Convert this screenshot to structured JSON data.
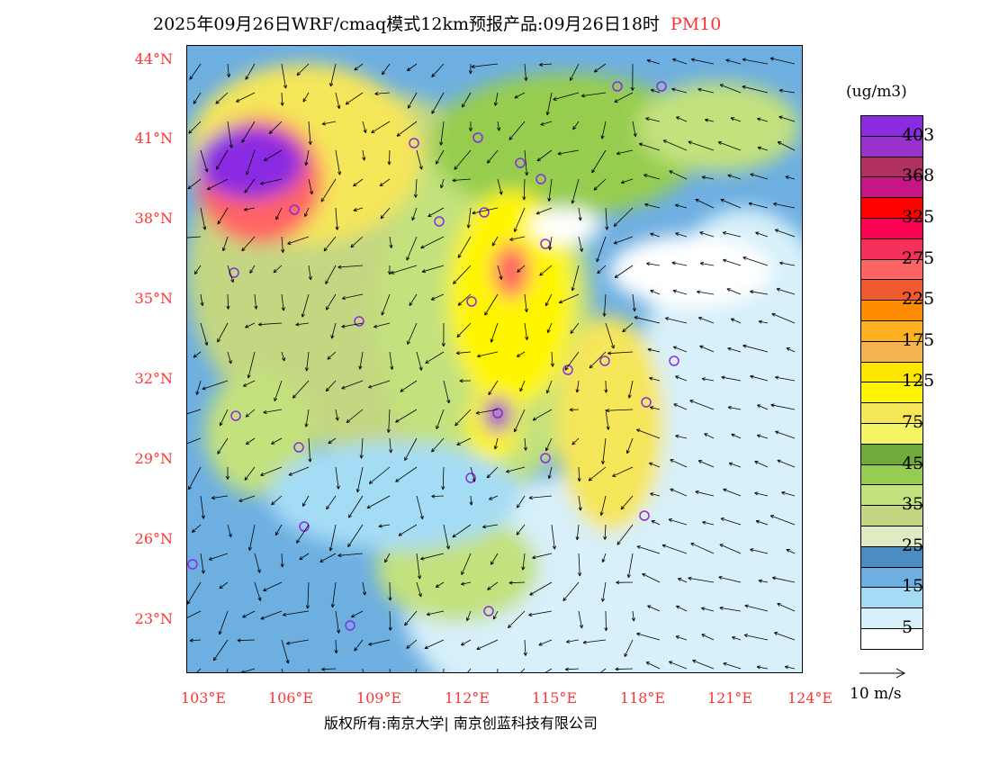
{
  "title": {
    "main": "2025年09月26日WRF/cmaq模式12km预报产品:09月26日18时",
    "pollutant": "PM10"
  },
  "lat_labels": [
    "44°N",
    "41°N",
    "38°N",
    "35°N",
    "32°N",
    "29°N",
    "26°N",
    "23°N"
  ],
  "lon_labels": [
    "103°E",
    "106°E",
    "109°E",
    "112°E",
    "115°E",
    "118°E",
    "121°E",
    "124°E"
  ],
  "colorbar": {
    "unit": "(ug/m3)",
    "colors": [
      "#8a2be2",
      "#9932cc",
      "#b03060",
      "#c71585",
      "#ff0000",
      "#ff0050",
      "#f5305a",
      "#ff6464",
      "#f05a2d",
      "#ff8c00",
      "#ffb020",
      "#f5b450",
      "#ffe600",
      "#fff500",
      "#f5e65a",
      "#f5f564",
      "#6eaa3c",
      "#96cd50",
      "#c3e17d",
      "#c3d782",
      "#e1ebc3",
      "#4b8cc3",
      "#6eafe1",
      "#a5dcf5",
      "#d7f0fa",
      "#ffffff"
    ],
    "labels": [
      "403",
      "368",
      "325",
      "275",
      "225",
      "175",
      "125",
      "75",
      "45",
      "35",
      "25",
      "15",
      "5"
    ]
  },
  "wind_legend": "10 m/s",
  "copyright": "版权所有:南京大学| 南京创蓝科技有限公司"
}
